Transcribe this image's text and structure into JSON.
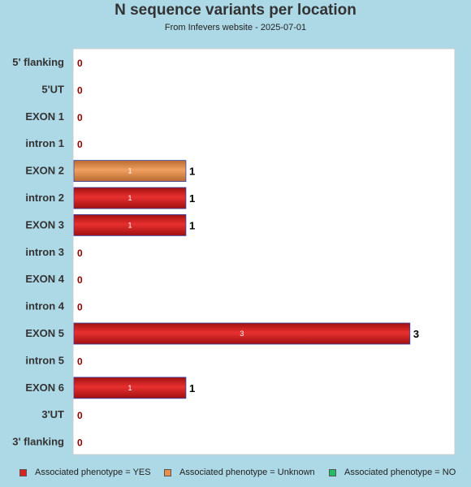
{
  "chart_data": {
    "type": "bar",
    "orientation": "horizontal",
    "title": "N sequence variants per location",
    "subtitle": "From Infevers website - 2025-07-01",
    "categories": [
      "5' flanking",
      "5'UT",
      "EXON 1",
      "intron 1",
      "EXON 2",
      "intron 2",
      "EXON 3",
      "intron 3",
      "EXON 4",
      "intron 4",
      "EXON 5",
      "intron 5",
      "EXON 6",
      "3'UT",
      "3' flanking"
    ],
    "series": [
      {
        "name": "Associated phenotype = YES",
        "color": "#dd2222",
        "values": [
          0,
          0,
          0,
          0,
          0,
          1,
          1,
          0,
          0,
          0,
          3,
          0,
          1,
          0,
          0
        ]
      },
      {
        "name": "Associated phenotype = Unknown",
        "color": "#e8904a",
        "values": [
          0,
          0,
          0,
          0,
          1,
          0,
          0,
          0,
          0,
          0,
          0,
          0,
          0,
          0,
          0
        ]
      },
      {
        "name": "Associated phenotype = NO",
        "color": "#22bb66",
        "values": [
          0,
          0,
          0,
          0,
          0,
          0,
          0,
          0,
          0,
          0,
          0,
          0,
          0,
          0,
          0
        ]
      }
    ],
    "totals": [
      0,
      0,
      0,
      0,
      1,
      1,
      1,
      0,
      0,
      0,
      3,
      0,
      1,
      0,
      0
    ],
    "xlim": [
      0,
      3.4
    ],
    "grid": false,
    "legend": "bottom"
  }
}
